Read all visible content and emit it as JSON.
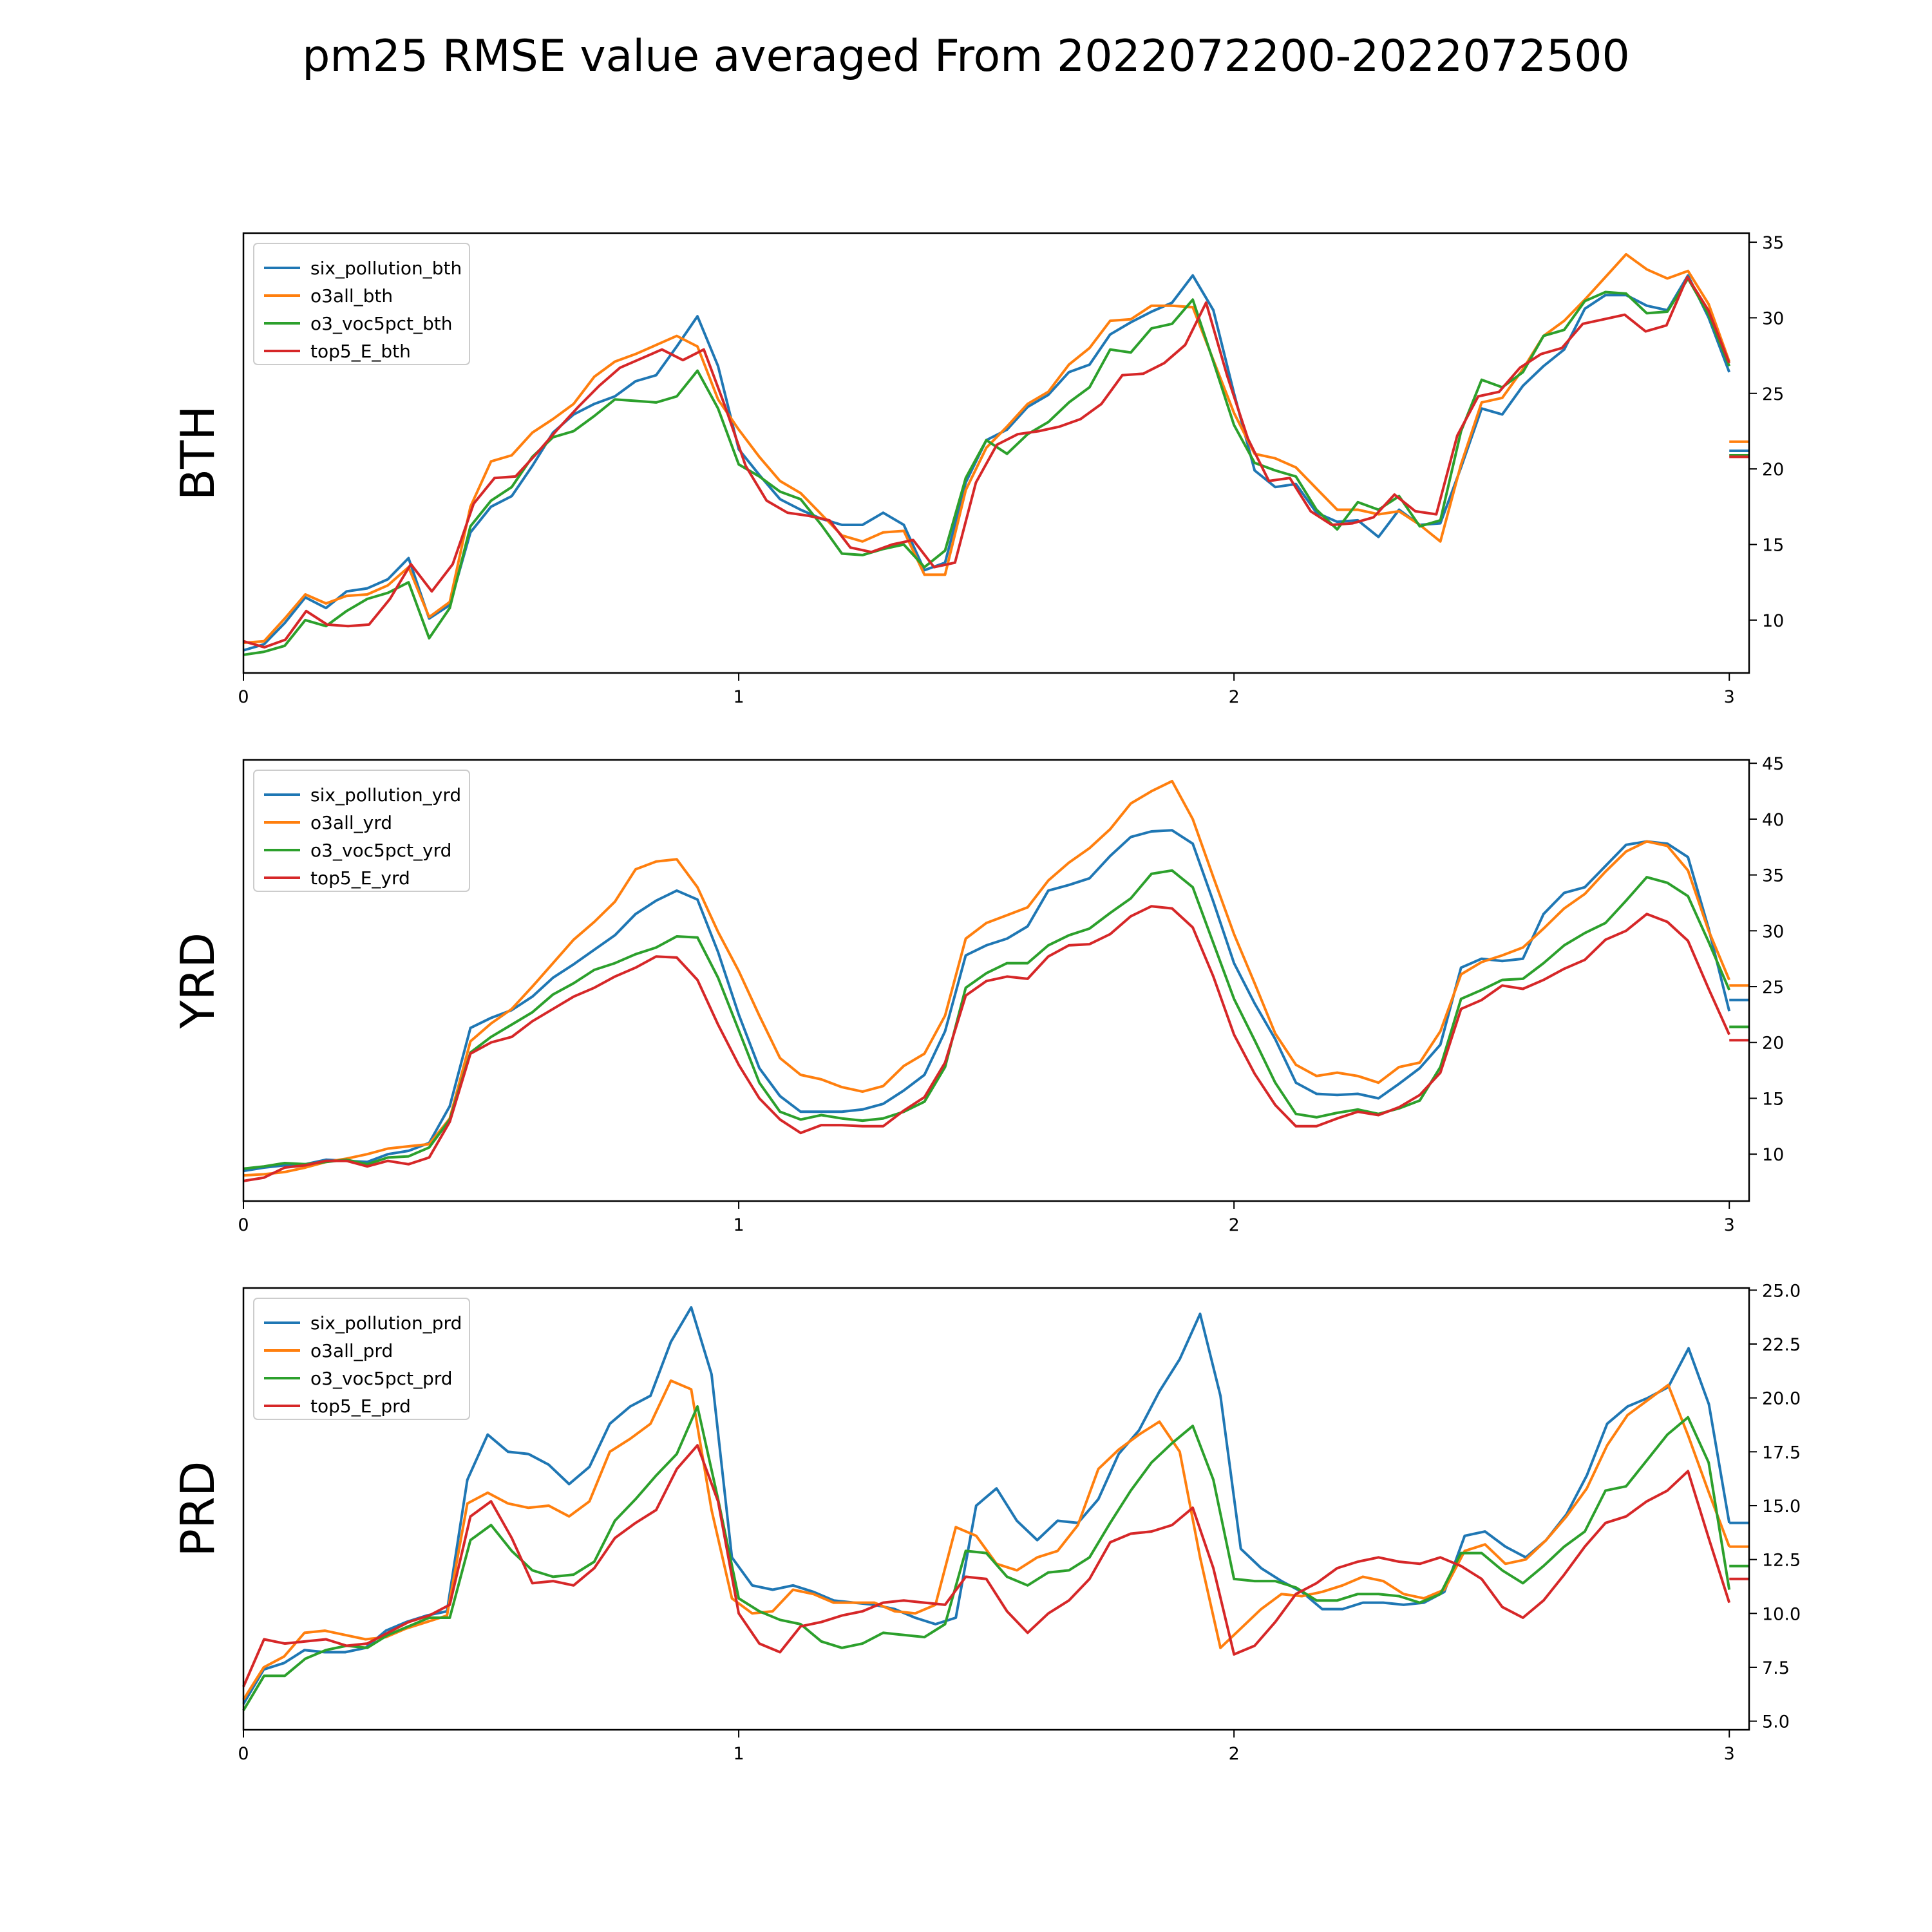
{
  "figure_title": "pm25 RMSE value averaged From 2022072200-2022072500",
  "colors": {
    "series": [
      "#1f77b4",
      "#ff7f0e",
      "#2ca02c",
      "#d62728"
    ]
  },
  "chart_data": [
    {
      "type": "line",
      "row_label": "BTH",
      "xlim": [
        0,
        3.04
      ],
      "ylim": [
        6.5,
        35.6
      ],
      "x_ticks": [
        0,
        1,
        2,
        3
      ],
      "y_ticks": [
        10,
        15,
        20,
        25,
        30,
        35
      ],
      "y_axis_side": "right",
      "legend_position": "upper-left",
      "series": [
        {
          "name": "six_pollution_bth",
          "values": [
            8.0,
            8.4,
            9.8,
            11.5,
            10.8,
            11.9,
            12.1,
            12.7,
            14.1,
            10.1,
            11.0,
            15.8,
            17.5,
            18.2,
            20.2,
            22.4,
            23.6,
            24.3,
            24.8,
            25.8,
            26.2,
            28.1,
            30.1,
            26.8,
            21.3,
            19.6,
            18.0,
            17.3,
            16.7,
            16.3,
            16.3,
            17.1,
            16.3,
            13.3,
            13.8,
            19.1,
            21.9,
            22.6,
            24.1,
            24.9,
            26.4,
            26.9,
            28.9,
            29.7,
            30.4,
            31.0,
            32.8,
            30.5,
            25.0,
            19.9,
            18.8,
            19.0,
            17.1,
            16.5,
            16.6,
            15.5,
            17.3,
            16.3,
            16.4,
            20.1,
            24.0,
            23.6,
            25.5,
            26.8,
            27.9,
            30.6,
            31.5,
            31.5,
            30.8,
            30.5,
            32.8,
            30.0,
            26.4
          ],
          "end_marker": 21.2
        },
        {
          "name": "o3all_bth",
          "values": [
            8.5,
            8.6,
            10.1,
            11.7,
            11.1,
            11.6,
            11.7,
            12.3,
            13.5,
            10.2,
            11.2,
            17.5,
            20.5,
            20.9,
            22.4,
            23.3,
            24.3,
            26.1,
            27.1,
            27.6,
            28.2,
            28.8,
            28.1,
            24.6,
            22.6,
            20.8,
            19.2,
            18.4,
            17.0,
            15.6,
            15.2,
            15.8,
            15.9,
            13.0,
            13.0,
            18.6,
            21.4,
            22.8,
            24.3,
            25.1,
            26.9,
            28.0,
            29.8,
            29.9,
            30.8,
            30.8,
            30.7,
            27.2,
            23.7,
            21.0,
            20.7,
            20.1,
            18.7,
            17.3,
            17.3,
            17.0,
            17.2,
            16.3,
            15.2,
            20.3,
            24.4,
            24.7,
            26.6,
            28.8,
            29.8,
            31.2,
            32.7,
            34.2,
            33.2,
            32.6,
            33.1,
            30.9,
            27.1
          ],
          "end_marker": 21.8
        },
        {
          "name": "o3_voc5pct_bth",
          "values": [
            7.7,
            7.9,
            8.3,
            10.0,
            9.6,
            10.6,
            11.4,
            11.8,
            12.5,
            8.8,
            10.8,
            16.2,
            17.9,
            18.8,
            20.8,
            22.1,
            22.5,
            23.5,
            24.6,
            24.5,
            24.4,
            24.8,
            26.5,
            24.0,
            20.3,
            19.5,
            18.5,
            18.0,
            16.3,
            14.4,
            14.3,
            14.7,
            15.0,
            13.5,
            14.6,
            19.4,
            21.9,
            21.0,
            22.3,
            23.1,
            24.4,
            25.4,
            27.9,
            27.7,
            29.3,
            29.6,
            31.2,
            27.1,
            22.9,
            20.4,
            19.9,
            19.5,
            17.3,
            16.0,
            17.8,
            17.3,
            18.2,
            16.2,
            16.6,
            22.5,
            25.9,
            25.4,
            26.4,
            28.8,
            29.2,
            31.1,
            31.7,
            31.6,
            30.3,
            30.4,
            32.6,
            30.2,
            26.8
          ],
          "end_marker": 20.9
        },
        {
          "name": "top5_E_bth",
          "values": [
            8.6,
            8.2,
            8.7,
            10.6,
            9.7,
            9.6,
            9.7,
            11.4,
            13.7,
            11.9,
            13.7,
            17.7,
            19.4,
            19.5,
            21.0,
            22.6,
            24.1,
            25.5,
            26.7,
            27.3,
            27.9,
            27.2,
            27.9,
            24.2,
            20.2,
            17.9,
            17.1,
            16.9,
            16.6,
            14.8,
            14.5,
            15.0,
            15.3,
            13.5,
            13.8,
            19.1,
            21.6,
            22.3,
            22.5,
            22.8,
            23.3,
            24.3,
            26.2,
            26.3,
            27.0,
            28.2,
            31.0,
            26.2,
            22.0,
            19.2,
            19.4,
            17.2,
            16.3,
            16.4,
            16.8,
            18.3,
            17.2,
            17.0,
            22.2,
            24.8,
            25.1,
            26.7,
            27.6,
            28.0,
            29.6,
            29.9,
            30.2,
            29.1,
            29.5,
            32.7,
            30.5,
            27.0
          ],
          "end_marker": 20.8
        }
      ]
    },
    {
      "type": "line",
      "row_label": "YRD",
      "xlim": [
        0,
        3.04
      ],
      "ylim": [
        5.8,
        45.3
      ],
      "x_ticks": [
        0,
        1,
        2,
        3
      ],
      "y_ticks": [
        10,
        15,
        20,
        25,
        30,
        35,
        40,
        45
      ],
      "y_axis_side": "right",
      "legend_position": "upper-left",
      "series": [
        {
          "name": "six_pollution_yrd",
          "values": [
            8.5,
            8.8,
            9.0,
            9.1,
            9.5,
            9.4,
            9.3,
            10.0,
            10.3,
            11.0,
            14.3,
            21.3,
            22.2,
            22.9,
            24.1,
            25.8,
            27.0,
            28.3,
            29.6,
            31.5,
            32.7,
            33.6,
            32.8,
            28.1,
            22.5,
            17.7,
            15.2,
            13.8,
            13.8,
            13.8,
            14.0,
            14.5,
            15.7,
            17.1,
            21.0,
            27.8,
            28.7,
            29.3,
            30.4,
            33.6,
            34.1,
            34.7,
            36.7,
            38.4,
            38.9,
            39.0,
            37.8,
            32.6,
            27.1,
            23.5,
            20.3,
            16.4,
            15.4,
            15.3,
            15.4,
            15.0,
            16.3,
            17.7,
            19.8,
            26.7,
            27.5,
            27.3,
            27.5,
            31.5,
            33.4,
            33.9,
            35.8,
            37.7,
            38.0,
            37.8,
            36.6,
            30.2,
            22.8
          ],
          "end_marker": 23.8
        },
        {
          "name": "o3all_yrd",
          "values": [
            8.1,
            8.2,
            8.4,
            8.8,
            9.3,
            9.6,
            10.0,
            10.5,
            10.7,
            10.9,
            13.2,
            20.1,
            21.7,
            23.0,
            25.0,
            27.1,
            29.2,
            30.8,
            32.6,
            35.5,
            36.2,
            36.4,
            33.9,
            29.9,
            26.4,
            22.4,
            18.6,
            17.1,
            16.7,
            16.0,
            15.6,
            16.1,
            17.9,
            19.0,
            22.4,
            29.3,
            30.7,
            31.4,
            32.1,
            34.5,
            36.1,
            37.4,
            39.1,
            41.4,
            42.5,
            43.4,
            40.0,
            34.8,
            29.7,
            25.3,
            20.8,
            18.0,
            17.0,
            17.3,
            17.0,
            16.4,
            17.8,
            18.2,
            21.0,
            26.1,
            27.2,
            27.8,
            28.5,
            30.2,
            32.0,
            33.3,
            35.3,
            37.1,
            38.0,
            37.6,
            35.4,
            30.0,
            25.6
          ],
          "end_marker": 25.1
        },
        {
          "name": "o3_voc5pct_yrd",
          "values": [
            8.7,
            8.9,
            9.2,
            9.1,
            9.3,
            9.5,
            9.1,
            9.7,
            9.8,
            10.6,
            13.1,
            19.1,
            20.5,
            21.6,
            22.7,
            24.3,
            25.3,
            26.5,
            27.1,
            27.9,
            28.5,
            29.5,
            29.4,
            25.8,
            21.1,
            16.4,
            13.8,
            13.1,
            13.5,
            13.2,
            13.0,
            13.2,
            13.8,
            14.7,
            17.8,
            24.9,
            26.2,
            27.1,
            27.1,
            28.7,
            29.6,
            30.2,
            31.6,
            32.9,
            35.1,
            35.4,
            33.9,
            28.9,
            23.9,
            20.2,
            16.4,
            13.6,
            13.3,
            13.7,
            14.0,
            13.6,
            14.1,
            14.8,
            17.8,
            23.9,
            24.7,
            25.6,
            25.7,
            27.1,
            28.7,
            29.8,
            30.7,
            32.7,
            34.8,
            34.3,
            33.1,
            29.0,
            24.7
          ],
          "end_marker": 21.4
        },
        {
          "name": "top5_E_yrd",
          "values": [
            7.6,
            7.9,
            8.8,
            9.0,
            9.4,
            9.4,
            8.9,
            9.4,
            9.1,
            9.7,
            12.9,
            19.0,
            20.0,
            20.5,
            21.9,
            23.0,
            24.1,
            24.9,
            25.9,
            26.7,
            27.7,
            27.6,
            25.6,
            21.6,
            18.0,
            15.0,
            13.1,
            11.9,
            12.6,
            12.6,
            12.5,
            12.5,
            13.9,
            15.1,
            18.2,
            24.2,
            25.5,
            25.9,
            25.7,
            27.7,
            28.7,
            28.8,
            29.7,
            31.3,
            32.2,
            32.0,
            30.3,
            25.9,
            20.7,
            17.2,
            14.4,
            12.5,
            12.5,
            13.2,
            13.8,
            13.5,
            14.2,
            15.3,
            17.3,
            23.0,
            23.8,
            25.1,
            24.8,
            25.6,
            26.6,
            27.4,
            29.2,
            30.0,
            31.5,
            30.8,
            29.1,
            24.8,
            20.7
          ],
          "end_marker": 20.2
        }
      ]
    },
    {
      "type": "line",
      "row_label": "PRD",
      "xlim": [
        0,
        3.04
      ],
      "ylim": [
        4.6,
        25.1
      ],
      "x_ticks": [
        0,
        1,
        2,
        3
      ],
      "y_ticks": [
        5.0,
        7.5,
        10.0,
        12.5,
        15.0,
        17.5,
        20.0,
        22.5,
        25.0
      ],
      "y_tick_labels": [
        "5.0",
        "7.5",
        "10.0",
        "12.5",
        "15.0",
        "17.5",
        "20.0",
        "22.5",
        "25.0"
      ],
      "y_axis_side": "right",
      "legend_position": "upper-left",
      "series": [
        {
          "name": "six_pollution_prd",
          "values": [
            5.8,
            7.4,
            7.7,
            8.3,
            8.2,
            8.2,
            8.4,
            9.2,
            9.6,
            9.9,
            10.1,
            16.2,
            18.3,
            17.5,
            17.4,
            16.9,
            16.0,
            16.8,
            18.8,
            19.6,
            20.1,
            22.6,
            24.2,
            21.1,
            12.6,
            11.3,
            11.1,
            11.3,
            11.0,
            10.6,
            10.5,
            10.4,
            10.2,
            9.8,
            9.5,
            9.8,
            15.0,
            15.8,
            14.3,
            13.4,
            14.3,
            14.2,
            15.3,
            17.4,
            18.5,
            20.3,
            21.8,
            23.9,
            20.1,
            13.0,
            12.1,
            11.5,
            11.0,
            10.2,
            10.2,
            10.5,
            10.5,
            10.4,
            10.5,
            11.0,
            13.6,
            13.8,
            13.1,
            12.6,
            13.4,
            14.6,
            16.4,
            18.8,
            19.6,
            20.0,
            20.5,
            22.3,
            19.7,
            14.2
          ],
          "end_marker": 14.2
        },
        {
          "name": "o3all_prd",
          "values": [
            6.0,
            7.5,
            8.0,
            9.1,
            9.2,
            9.0,
            8.8,
            8.9,
            9.3,
            9.6,
            9.9,
            15.1,
            15.6,
            15.1,
            14.9,
            15.0,
            14.5,
            15.2,
            17.5,
            18.1,
            18.8,
            20.8,
            20.4,
            14.8,
            10.7,
            10.0,
            10.1,
            11.1,
            10.9,
            10.5,
            10.5,
            10.5,
            10.1,
            10.0,
            10.4,
            14.0,
            13.6,
            12.3,
            12.0,
            12.6,
            12.9,
            14.1,
            16.7,
            17.6,
            18.3,
            18.9,
            17.5,
            12.6,
            8.4,
            9.3,
            10.2,
            10.9,
            10.8,
            11.0,
            11.3,
            11.7,
            11.5,
            10.9,
            10.7,
            11.1,
            12.9,
            13.2,
            12.3,
            12.5,
            13.4,
            14.5,
            15.8,
            17.8,
            19.2,
            19.9,
            20.6,
            18.2,
            15.6,
            13.1
          ],
          "end_marker": 13.1
        },
        {
          "name": "o3_voc5pct_prd",
          "values": [
            5.5,
            7.1,
            7.1,
            7.9,
            8.3,
            8.5,
            8.4,
            9.0,
            9.4,
            9.8,
            9.8,
            13.4,
            14.1,
            12.9,
            12.0,
            11.7,
            11.8,
            12.4,
            14.3,
            15.3,
            16.4,
            17.4,
            19.6,
            15.3,
            10.7,
            10.1,
            9.7,
            9.5,
            8.7,
            8.4,
            8.6,
            9.1,
            9.0,
            8.9,
            9.5,
            12.9,
            12.8,
            11.7,
            11.3,
            11.9,
            12.0,
            12.6,
            14.2,
            15.7,
            17.0,
            17.9,
            18.7,
            16.2,
            11.6,
            11.5,
            11.5,
            11.2,
            10.6,
            10.6,
            10.9,
            10.9,
            10.8,
            10.5,
            10.9,
            12.8,
            12.8,
            12.0,
            11.4,
            12.2,
            13.1,
            13.8,
            15.7,
            15.9,
            17.1,
            18.3,
            19.1,
            17.0,
            11.1
          ],
          "end_marker": 12.2
        },
        {
          "name": "top5_E_prd",
          "values": [
            6.6,
            8.8,
            8.6,
            8.7,
            8.8,
            8.5,
            8.6,
            9.1,
            9.6,
            9.9,
            10.4,
            14.5,
            15.2,
            13.5,
            11.4,
            11.5,
            11.3,
            12.1,
            13.5,
            14.2,
            14.8,
            16.7,
            17.8,
            15.2,
            10.0,
            8.6,
            8.2,
            9.4,
            9.6,
            9.9,
            10.1,
            10.5,
            10.6,
            10.5,
            10.4,
            11.7,
            11.6,
            10.1,
            9.1,
            10.0,
            10.6,
            11.6,
            13.3,
            13.7,
            13.8,
            14.1,
            14.9,
            12.1,
            8.1,
            8.5,
            9.6,
            10.9,
            11.4,
            12.1,
            12.4,
            12.6,
            12.4,
            12.3,
            12.6,
            12.2,
            11.6,
            10.3,
            9.8,
            10.6,
            11.8,
            13.1,
            14.2,
            14.5,
            15.2,
            15.7,
            16.6,
            13.5,
            10.5
          ],
          "end_marker": 11.6
        }
      ]
    }
  ]
}
